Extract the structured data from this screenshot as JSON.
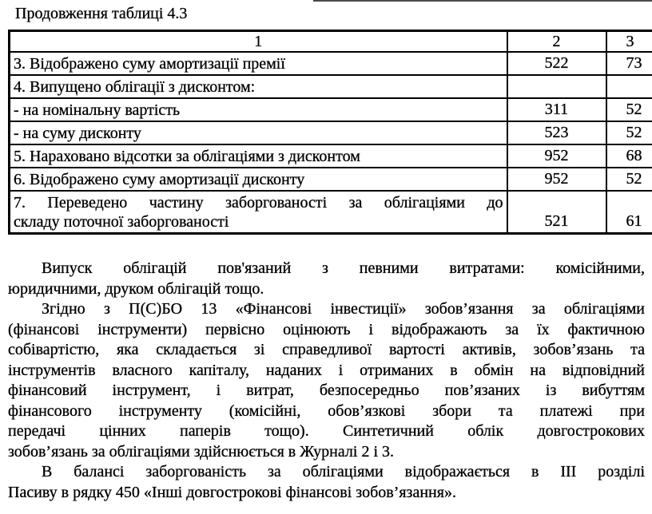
{
  "caption": "Продовження таблиці 4.3",
  "table": {
    "header": {
      "col1": "1",
      "col2": "2",
      "col3": "3"
    },
    "rows": [
      {
        "label_lines": [
          "3. Відображено суму амортизації премії"
        ],
        "col2": "522",
        "col3": "73"
      },
      {
        "label_lines": [
          "4. Випущено облігації з дисконтом:"
        ],
        "col2": "",
        "col3": ""
      },
      {
        "label_lines": [
          "- на номінальну вартість"
        ],
        "col2": "311",
        "col3": "52"
      },
      {
        "label_lines": [
          "- на суму дисконту"
        ],
        "col2": "523",
        "col3": "52"
      },
      {
        "label_lines": [
          "5. Нараховано відсотки за облігаціями з дисконтом"
        ],
        "col2": "952",
        "col3": "68"
      },
      {
        "label_lines": [
          "6. Відображено суму амортизації дисконту"
        ],
        "col2": "952",
        "col3": "52"
      },
      {
        "label_lines": [
          "7. Переведено частину заборгованості за облігаціями до",
          "складу поточної заборгованості"
        ],
        "col2": "521",
        "col3": "61",
        "tall": true
      }
    ]
  },
  "paragraphs": [
    {
      "lines": [
        "Випуск облігацій пов'язаний з певними витратами: комісійними,",
        "юридичними, друком облігацій тощо."
      ]
    },
    {
      "lines": [
        "Згідно з П(С)БО 13 «Фінансові інвестиції» зобов’язання за облігаціями",
        "(фінансові інструменти) первісно оцінюють і відображають за їх фактичною",
        "собівартістю, яка складається зі справедливої вартості активів, зобов’язань та",
        "інструментів власного капіталу, наданих і отриманих в обмін на відповідний",
        "фінансовий інструмент, і витрат, безпосередньо пов’язаних із вибуттям",
        "фінансового інструменту (комісійні, обов’язкові збори та платежі при",
        "передачі цінних паперів тощо). Синтетичний облік довгострокових",
        "зобов’язань за облігаціями здійснюється в Журналі 2 і 3."
      ]
    },
    {
      "lines": [
        "В балансі заборгованість за облігаціями відображається в ІІІ розділі",
        "Пасиву в рядку 450 «Інші довгострокові фінансові зобов’язання»."
      ]
    }
  ]
}
